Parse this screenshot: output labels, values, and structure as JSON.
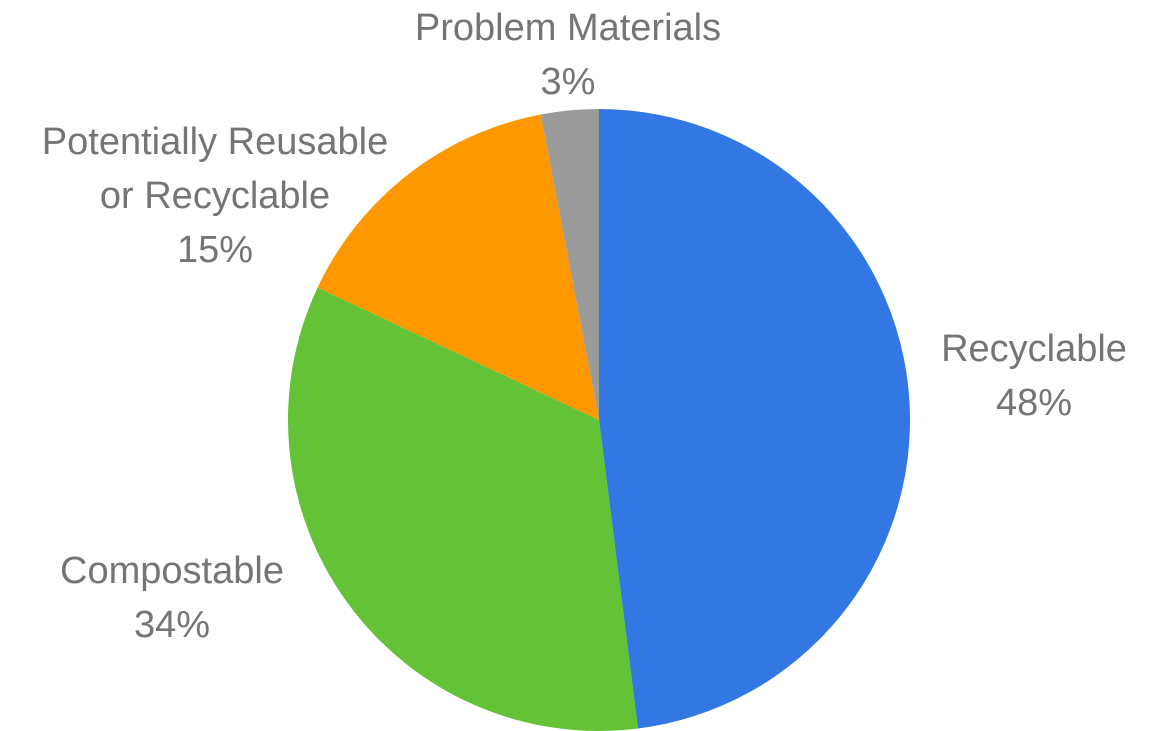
{
  "chart_data": {
    "type": "pie",
    "title": "",
    "slices": [
      {
        "label_lines": [
          "Recyclable"
        ],
        "value": 48,
        "value_label": "48%",
        "color": "#3377e2"
      },
      {
        "label_lines": [
          "Compostable"
        ],
        "value": 34,
        "value_label": "34%",
        "color": "#63c235"
      },
      {
        "label_lines": [
          "Potentially Reusable",
          "or Recyclable"
        ],
        "value": 15,
        "value_label": "15%",
        "color": "#fd9801"
      },
      {
        "label_lines": [
          "Problem Materials"
        ],
        "value": 3,
        "value_label": "3%",
        "color": "#9b9b9b"
      }
    ],
    "start_angle": "12 o'clock",
    "direction": "clockwise",
    "legend": "none",
    "label_position": "outside"
  }
}
